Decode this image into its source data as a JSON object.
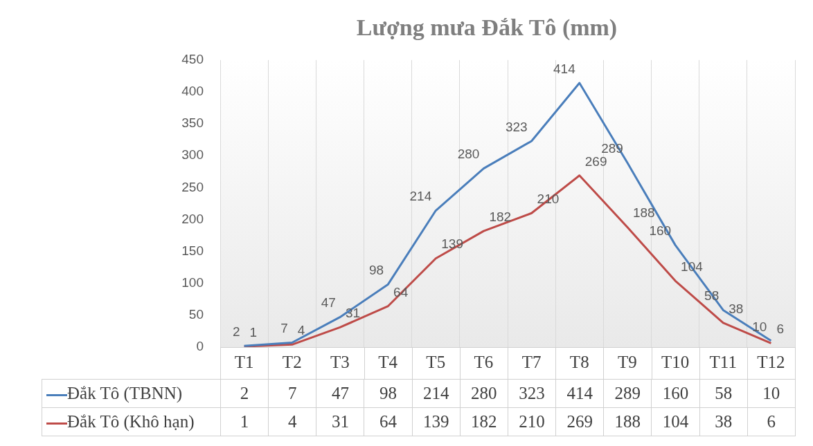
{
  "chart_data": {
    "type": "line",
    "title": "Lượng mưa Đắk Tô (mm)",
    "categories": [
      "T1",
      "T2",
      "T3",
      "T4",
      "T5",
      "T6",
      "T7",
      "T8",
      "T9",
      "T10",
      "T11",
      "T12"
    ],
    "series": [
      {
        "name": "Đắk Tô (TBNN)",
        "color": "#4a7ebb",
        "values": [
          2,
          7,
          47,
          98,
          214,
          280,
          323,
          414,
          289,
          160,
          58,
          10
        ]
      },
      {
        "name": "Đắk Tô (Khô hạn)",
        "color": "#be4b48",
        "values": [
          1,
          4,
          31,
          64,
          139,
          182,
          210,
          269,
          188,
          104,
          38,
          6
        ]
      }
    ],
    "ylim": [
      0,
      450
    ],
    "yticks": [
      0,
      50,
      100,
      150,
      200,
      250,
      300,
      350,
      400,
      450
    ],
    "grid": "x",
    "legend": "bottom",
    "data_labels": true,
    "marker": "none",
    "line_style": "solid",
    "annotations": [
      {
        "text": "2",
        "x": "T1",
        "y": 2
      },
      {
        "text": "7",
        "x": "T2",
        "y": 7
      },
      {
        "text": "47",
        "x": "T3",
        "y": 47
      },
      {
        "text": "98",
        "x": "T4",
        "y": 98
      },
      {
        "text": "214",
        "x": "T5",
        "y": 214
      },
      {
        "text": "280",
        "x": "T6",
        "y": 280
      },
      {
        "text": "323",
        "x": "T7",
        "y": 323
      },
      {
        "text": "414",
        "x": "T8",
        "y": 414
      },
      {
        "text": "289",
        "x": "T9",
        "y": 289
      },
      {
        "text": "160",
        "x": "T10",
        "y": 160
      },
      {
        "text": "58",
        "x": "T11",
        "y": 58
      },
      {
        "text": "10",
        "x": "T12",
        "y": 10
      },
      {
        "text": "1",
        "x": "T1",
        "y": 1
      },
      {
        "text": "4",
        "x": "T2",
        "y": 4
      },
      {
        "text": "31",
        "x": "T3",
        "y": 31
      },
      {
        "text": "64",
        "x": "T4",
        "y": 64
      },
      {
        "text": "139",
        "x": "T5",
        "y": 139
      },
      {
        "text": "182",
        "x": "T6",
        "y": 182
      },
      {
        "text": "210",
        "x": "T7",
        "y": 210
      },
      {
        "text": "269",
        "x": "T8",
        "y": 269
      },
      {
        "text": "188",
        "x": "T9",
        "y": 188
      },
      {
        "text": "104",
        "x": "T10",
        "y": 104
      },
      {
        "text": "38",
        "x": "T11",
        "y": 38
      },
      {
        "text": "6",
        "x": "T12",
        "y": 6
      }
    ]
  }
}
